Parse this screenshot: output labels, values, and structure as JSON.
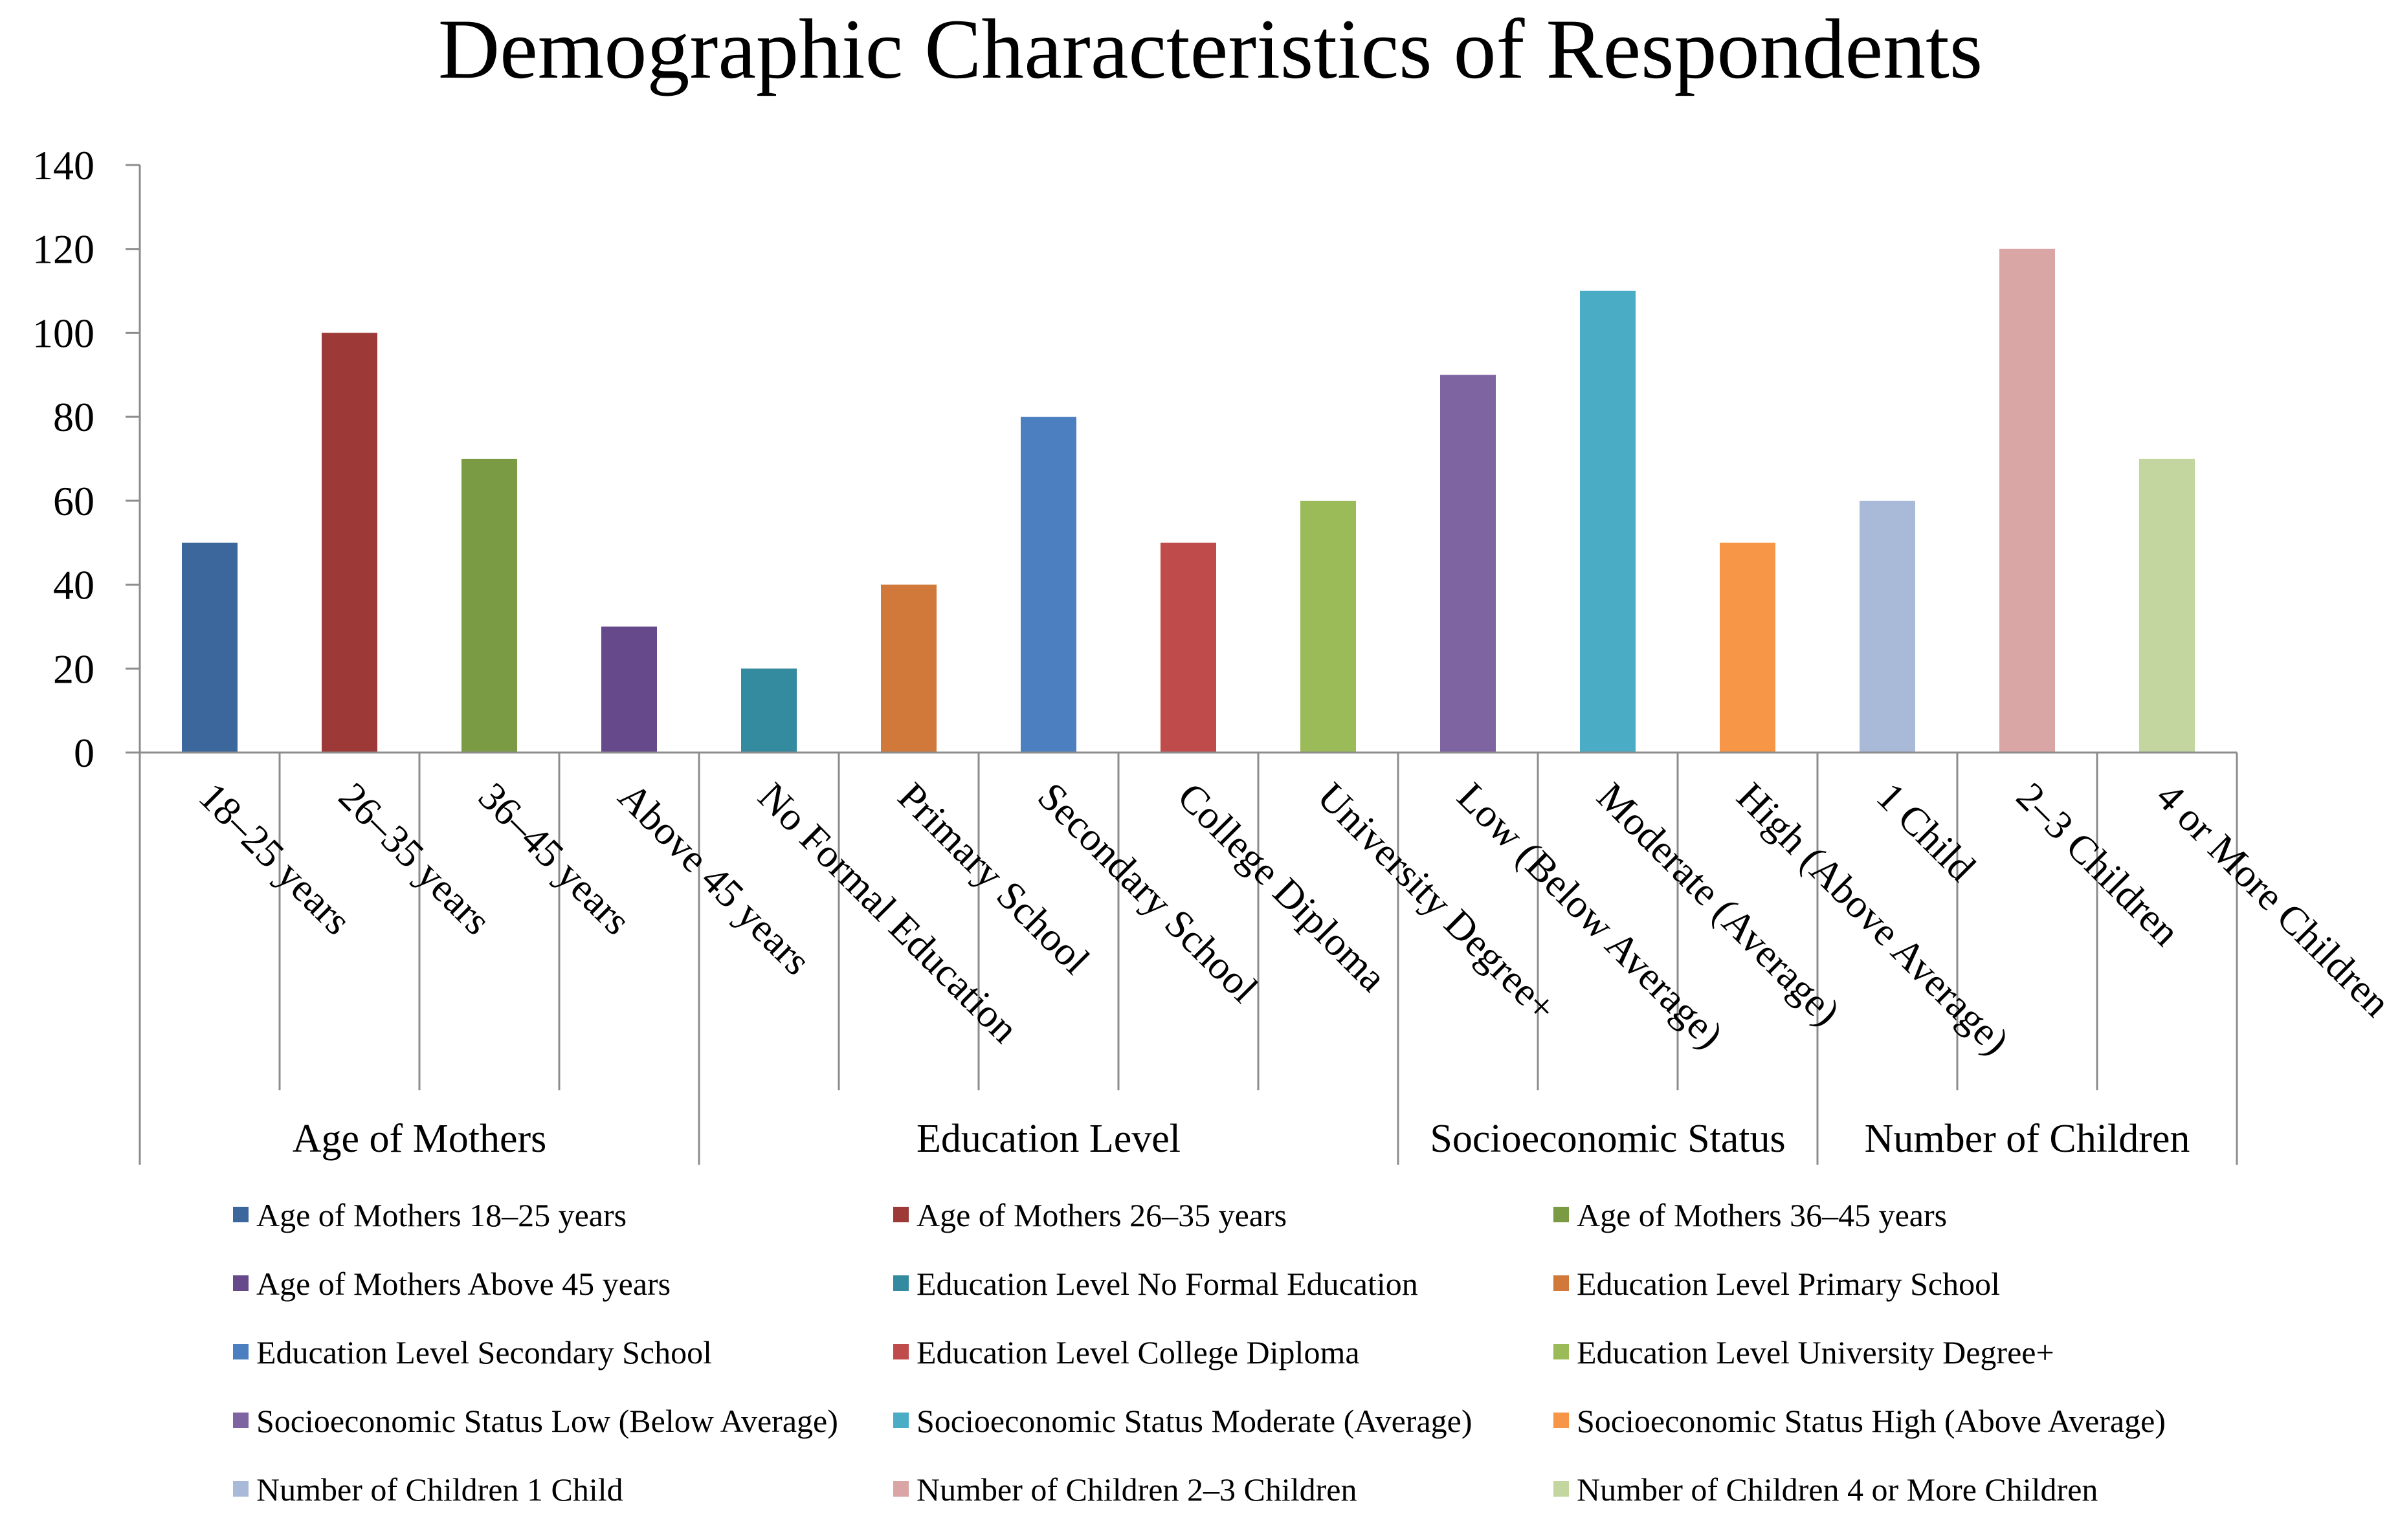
{
  "chart_data": {
    "type": "bar",
    "title": "Demographic Characteristics of Respondents",
    "xlabel": "",
    "ylabel": "",
    "ylim": [
      0,
      140
    ],
    "yticks": [
      0,
      20,
      40,
      60,
      80,
      100,
      120,
      140
    ],
    "grid": false,
    "legend_position": "bottom",
    "groups": [
      {
        "name": "Age of Mothers",
        "size": 4
      },
      {
        "name": "Education Level",
        "size": 5
      },
      {
        "name": "Socioeconomic Status",
        "size": 3
      },
      {
        "name": "Number of Children",
        "size": 3
      }
    ],
    "categories": [
      "18–25 years",
      "26–35 years",
      "36–45 years",
      "Above 45 years",
      "No Formal Education",
      "Primary School",
      "Secondary School",
      "College Diploma",
      "University Degree+",
      "Low (Below Average)",
      "Moderate (Average)",
      "High (Above Average)",
      "1 Child",
      "2–3 Children",
      "4 or More Children"
    ],
    "values": [
      50,
      100,
      70,
      30,
      20,
      40,
      80,
      50,
      60,
      90,
      110,
      50,
      60,
      120,
      70
    ],
    "colors": [
      "#3c679c",
      "#9d3a38",
      "#7a9a43",
      "#65498a",
      "#348a9e",
      "#d0793a",
      "#4c7fbf",
      "#bf4c4a",
      "#9bbb58",
      "#7f64a2",
      "#4bacc6",
      "#f79646",
      "#a9bad9",
      "#d9a6a5",
      "#c3d69f"
    ],
    "legend": [
      "Age of Mothers 18–25 years",
      "Age of Mothers 26–35 years",
      "Age of Mothers 36–45 years",
      "Age of Mothers Above 45 years",
      "Education Level No Formal Education",
      "Education Level Primary School",
      "Education Level Secondary School",
      "Education Level College Diploma",
      "Education Level University Degree+",
      "Socioeconomic Status Low (Below Average)",
      "Socioeconomic Status Moderate (Average)",
      "Socioeconomic Status High (Above Average)",
      "Number of Children 1 Child",
      "Number of Children 2–3 Children",
      "Number of Children 4 or More Children"
    ]
  }
}
